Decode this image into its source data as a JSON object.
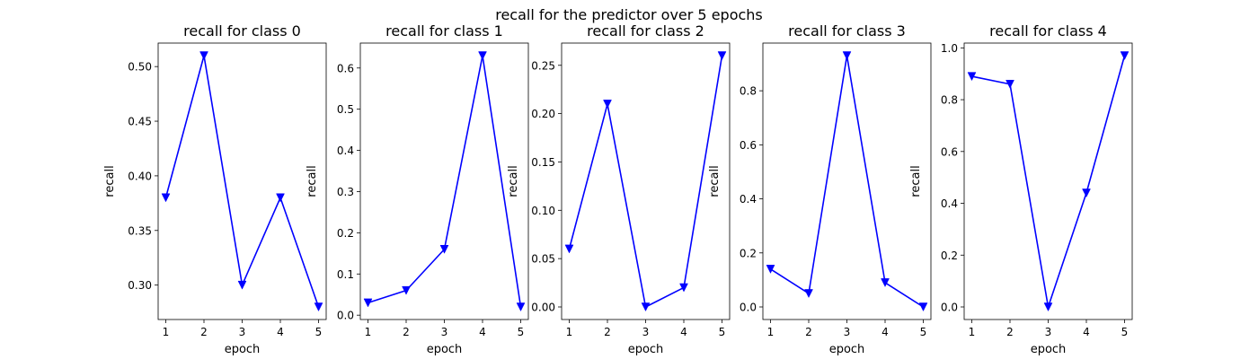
{
  "figure": {
    "suptitle": "recall for the predictor over 5 epochs"
  },
  "chart_data": [
    {
      "type": "line",
      "title": "recall for class 0",
      "xlabel": "epoch",
      "ylabel": "recall",
      "x": [
        1,
        2,
        3,
        4,
        5
      ],
      "y": [
        0.38,
        0.51,
        0.3,
        0.38,
        0.28
      ],
      "ylim": [
        0.2685,
        0.5215
      ],
      "yticks": [
        0.3,
        0.35,
        0.4,
        0.45,
        0.5
      ],
      "ytick_labels": [
        "0.30",
        "0.35",
        "0.40",
        "0.45",
        "0.50"
      ],
      "xticks": [
        1,
        2,
        3,
        4,
        5
      ],
      "xtick_labels": [
        "1",
        "2",
        "3",
        "4",
        "5"
      ],
      "marker": "triangle-down",
      "color": "#0000ff"
    },
    {
      "type": "line",
      "title": "recall for class 1",
      "xlabel": "epoch",
      "ylabel": "recall",
      "x": [
        1,
        2,
        3,
        4,
        5
      ],
      "y": [
        0.03,
        0.06,
        0.16,
        0.63,
        0.02
      ],
      "ylim": [
        -0.0105,
        0.6605
      ],
      "yticks": [
        0.0,
        0.1,
        0.2,
        0.3,
        0.4,
        0.5,
        0.6
      ],
      "ytick_labels": [
        "0.0",
        "0.1",
        "0.2",
        "0.3",
        "0.4",
        "0.5",
        "0.6"
      ],
      "xticks": [
        1,
        2,
        3,
        4,
        5
      ],
      "xtick_labels": [
        "1",
        "2",
        "3",
        "4",
        "5"
      ],
      "marker": "triangle-down",
      "color": "#0000ff"
    },
    {
      "type": "line",
      "title": "recall for class 2",
      "xlabel": "epoch",
      "ylabel": "recall",
      "x": [
        1,
        2,
        3,
        4,
        5
      ],
      "y": [
        0.06,
        0.21,
        0.0,
        0.02,
        0.26
      ],
      "ylim": [
        -0.013,
        0.273
      ],
      "yticks": [
        0.0,
        0.05,
        0.1,
        0.15,
        0.2,
        0.25
      ],
      "ytick_labels": [
        "0.00",
        "0.05",
        "0.10",
        "0.15",
        "0.20",
        "0.25"
      ],
      "xticks": [
        1,
        2,
        3,
        4,
        5
      ],
      "xtick_labels": [
        "1",
        "2",
        "3",
        "4",
        "5"
      ],
      "marker": "triangle-down",
      "color": "#0000ff"
    },
    {
      "type": "line",
      "title": "recall for class 3",
      "xlabel": "epoch",
      "ylabel": "recall",
      "x": [
        1,
        2,
        3,
        4,
        5
      ],
      "y": [
        0.14,
        0.05,
        0.93,
        0.09,
        0.0
      ],
      "ylim": [
        -0.0465,
        0.9765
      ],
      "yticks": [
        0.0,
        0.2,
        0.4,
        0.6,
        0.8
      ],
      "ytick_labels": [
        "0.0",
        "0.2",
        "0.4",
        "0.6",
        "0.8"
      ],
      "xticks": [
        1,
        2,
        3,
        4,
        5
      ],
      "xtick_labels": [
        "1",
        "2",
        "3",
        "4",
        "5"
      ],
      "marker": "triangle-down",
      "color": "#0000ff"
    },
    {
      "type": "line",
      "title": "recall for class 4",
      "xlabel": "epoch",
      "ylabel": "recall",
      "x": [
        1,
        2,
        3,
        4,
        5
      ],
      "y": [
        0.89,
        0.86,
        0.0,
        0.44,
        0.97
      ],
      "ylim": [
        -0.0485,
        1.0185
      ],
      "yticks": [
        0.0,
        0.2,
        0.4,
        0.6,
        0.8,
        1.0
      ],
      "ytick_labels": [
        "0.0",
        "0.2",
        "0.4",
        "0.6",
        "0.8",
        "1.0"
      ],
      "xticks": [
        1,
        2,
        3,
        4,
        5
      ],
      "xtick_labels": [
        "1",
        "2",
        "3",
        "4",
        "5"
      ],
      "marker": "triangle-down",
      "color": "#0000ff"
    }
  ]
}
